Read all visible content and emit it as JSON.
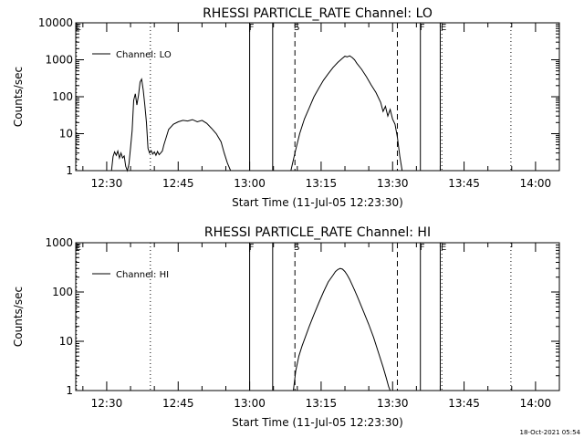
{
  "footer": {
    "timestamp": "18-Oct-2021 05:54"
  },
  "chart_data": [
    {
      "type": "line",
      "title": "RHESSI PARTICLE_RATE Channel: LO",
      "xlabel": "Start Time (11-Jul-05 12:23:30)",
      "ylabel": "Counts/sec",
      "yscale": "log",
      "ylim": [
        1,
        10000
      ],
      "xlim": [
        "12:23:30",
        "14:05:00"
      ],
      "x_ticks": [
        "12:30",
        "12:45",
        "13:00",
        "13:15",
        "13:30",
        "13:45",
        "14:00"
      ],
      "y_ticks": [
        "1",
        "10",
        "100",
        "1000",
        "10000"
      ],
      "legend": {
        "entries": [
          "Channel: LO"
        ],
        "position": "top-left"
      },
      "markers": [
        {
          "label": "F",
          "time": "13:00:00",
          "style": "solid"
        },
        {
          "label": "",
          "time": "13:04:50",
          "style": "solid"
        },
        {
          "label": "S",
          "time": "13:09:30",
          "style": "dashed"
        },
        {
          "label": "",
          "time": "13:31:00",
          "style": "dashed"
        },
        {
          "label": "F",
          "time": "13:35:50",
          "style": "solid"
        },
        {
          "label": "",
          "time": "13:40:00",
          "style": "solid"
        },
        {
          "label": "E",
          "time": "13:40:20",
          "style": "dotted"
        },
        {
          "label": "E",
          "time": "12:23:40",
          "style": "dotted"
        },
        {
          "label": "",
          "time": "12:39:10",
          "style": "dotted"
        },
        {
          "label": "",
          "time": "13:54:50",
          "style": "dotted"
        }
      ],
      "series": [
        {
          "name": "Channel: LO",
          "segments": [
            {
              "x": [
                "12:31:00",
                "12:31:20",
                "12:31:40",
                "12:32:00",
                "12:32:20",
                "12:32:40",
                "12:33:00",
                "12:33:20",
                "12:33:40",
                "12:34:00",
                "12:34:20",
                "12:34:40",
                "12:35:00",
                "12:35:20",
                "12:35:40",
                "12:36:00",
                "12:36:20",
                "12:36:40",
                "12:37:00",
                "12:37:20",
                "12:37:40",
                "12:38:00",
                "12:38:20",
                "12:38:40",
                "12:39:00",
                "12:39:20",
                "12:39:40",
                "12:40:00",
                "12:40:20",
                "12:40:40",
                "12:41:00",
                "12:41:20",
                "12:41:40",
                "12:42:00",
                "12:42:30",
                "12:43:00",
                "12:44:00",
                "12:45:00",
                "12:46:00",
                "12:47:00",
                "12:48:00",
                "12:49:00",
                "12:50:00",
                "12:51:00",
                "12:52:00",
                "12:53:00",
                "12:54:00",
                "12:54:40",
                "12:55:20",
                "12:56:00"
              ],
              "y": [
                1.0,
                2.4,
                3.2,
                2.6,
                3.4,
                2.2,
                3.0,
                2.2,
                2.5,
                1.3,
                1.0,
                1.5,
                4.0,
                12,
                80,
                120,
                60,
                110,
                250,
                300,
                150,
                60,
                20,
                4,
                3,
                3.5,
                2.8,
                3.2,
                2.6,
                3.3,
                2.7,
                3.0,
                3.4,
                5,
                8,
                13,
                18,
                21,
                23,
                22,
                24,
                21,
                23,
                19,
                14,
                10,
                6,
                3,
                1.6,
                1.0
              ]
            },
            {
              "x": [
                "13:08:40",
                "13:09:30",
                "13:10:30",
                "13:11:30",
                "13:12:30",
                "13:13:30",
                "13:14:30",
                "13:15:30",
                "13:16:30",
                "13:17:30",
                "13:18:30",
                "13:19:30",
                "13:20:00",
                "13:20:30",
                "13:21:00",
                "13:21:30",
                "13:22:00",
                "13:22:30",
                "13:23:30",
                "13:24:30",
                "13:25:30",
                "13:26:30",
                "13:27:30",
                "13:28:00",
                "13:28:30",
                "13:29:00",
                "13:29:30",
                "13:30:00",
                "13:30:30",
                "13:31:00",
                "13:31:30",
                "13:32:00"
              ],
              "y": [
                1.0,
                3,
                10,
                25,
                50,
                100,
                170,
                280,
                420,
                620,
                850,
                1100,
                1250,
                1200,
                1280,
                1150,
                1000,
                800,
                550,
                350,
                210,
                130,
                70,
                40,
                55,
                30,
                45,
                25,
                18,
                8,
                2.5,
                1.0
              ]
            }
          ]
        }
      ]
    },
    {
      "type": "line",
      "title": "RHESSI PARTICLE_RATE Channel: HI",
      "xlabel": "Start Time (11-Jul-05 12:23:30)",
      "ylabel": "Counts/sec",
      "yscale": "log",
      "ylim": [
        1,
        1000
      ],
      "xlim": [
        "12:23:30",
        "14:05:00"
      ],
      "x_ticks": [
        "12:30",
        "12:45",
        "13:00",
        "13:15",
        "13:30",
        "13:45",
        "14:00"
      ],
      "y_ticks": [
        "1",
        "10",
        "100",
        "1000"
      ],
      "legend": {
        "entries": [
          "Channel: HI"
        ],
        "position": "top-left"
      },
      "markers": [
        {
          "label": "F",
          "time": "13:00:00",
          "style": "solid"
        },
        {
          "label": "",
          "time": "13:04:50",
          "style": "solid"
        },
        {
          "label": "S",
          "time": "13:09:30",
          "style": "dashed"
        },
        {
          "label": "",
          "time": "13:31:00",
          "style": "dashed"
        },
        {
          "label": "F",
          "time": "13:35:50",
          "style": "solid"
        },
        {
          "label": "",
          "time": "13:40:00",
          "style": "solid"
        },
        {
          "label": "E",
          "time": "13:40:20",
          "style": "dotted"
        },
        {
          "label": "E",
          "time": "12:23:40",
          "style": "dotted"
        },
        {
          "label": "",
          "time": "12:39:10",
          "style": "dotted"
        },
        {
          "label": "",
          "time": "13:54:50",
          "style": "dotted"
        }
      ],
      "series": [
        {
          "name": "Channel: HI",
          "segments": [
            {
              "x": [
                "13:09:10",
                "13:09:40",
                "13:10:20",
                "13:11:00",
                "13:11:40",
                "13:12:30",
                "13:13:30",
                "13:14:30",
                "13:15:30",
                "13:16:30",
                "13:17:30",
                "13:18:00",
                "13:18:30",
                "13:19:00",
                "13:19:30",
                "13:20:00",
                "13:20:30",
                "13:21:00",
                "13:21:30",
                "13:22:00",
                "13:22:30",
                "13:23:00",
                "13:24:00",
                "13:25:00",
                "13:26:00",
                "13:27:00",
                "13:28:00",
                "13:28:40",
                "13:29:10",
                "13:29:30"
              ],
              "y": [
                1.0,
                2.5,
                5,
                8,
                12,
                20,
                35,
                60,
                100,
                160,
                220,
                260,
                285,
                300,
                290,
                260,
                220,
                180,
                140,
                110,
                85,
                65,
                38,
                22,
                12,
                6,
                3,
                1.8,
                1.2,
                1.0
              ]
            }
          ]
        }
      ]
    }
  ]
}
